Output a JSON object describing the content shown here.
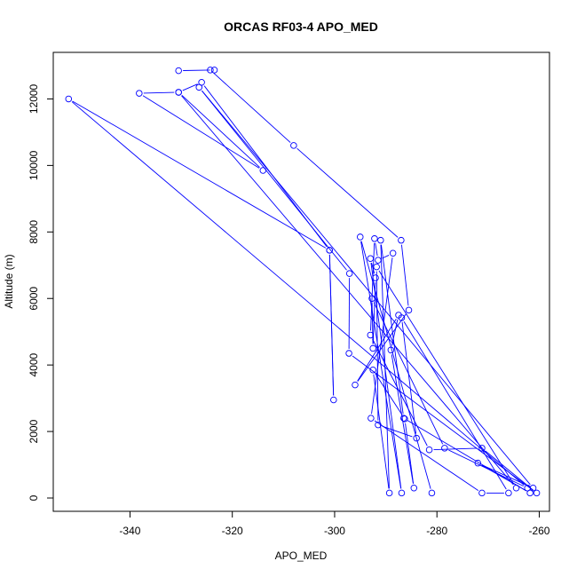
{
  "colors": {
    "series": "#0000ff",
    "axis": "#000000"
  },
  "chart_data": {
    "type": "line",
    "markers": "open-circle",
    "title": "ORCAS RF03-4 APO_MED",
    "xlabel": "APO_MED",
    "ylabel": "Altitude (m)",
    "xlim": [
      -355,
      -258
    ],
    "ylim": [
      -400,
      13400
    ],
    "xticks": [
      -340,
      -320,
      -300,
      -280,
      -260
    ],
    "yticks": [
      0,
      2000,
      4000,
      6000,
      8000,
      10000,
      12000
    ],
    "grid": false,
    "series": [
      {
        "points": [
          [
            -330.5,
            12850
          ],
          [
            -323.5,
            12870
          ],
          [
            -324.3,
            12870
          ],
          [
            -308,
            10600
          ],
          [
            -287,
            7750
          ],
          [
            -285.5,
            5650
          ],
          [
            -296,
            3400
          ],
          [
            -287.5,
            5500
          ],
          [
            -289,
            4450
          ],
          [
            -284.5,
            300
          ],
          [
            -286.3,
            2380
          ],
          [
            -292.5,
            3850
          ],
          [
            -289.3,
            150
          ],
          [
            -291,
            7750
          ],
          [
            -286.5,
            2400
          ],
          [
            -261.8,
            150
          ],
          [
            -272,
            1050
          ],
          [
            -261.2,
            300
          ],
          [
            -326.5,
            12350
          ],
          [
            -297.1,
            6750
          ],
          [
            -297.2,
            4350
          ],
          [
            -260.5,
            150
          ],
          [
            -271.2,
            1500
          ],
          [
            -281.5,
            1450
          ],
          [
            -293,
            4900
          ],
          [
            -292.2,
            7800
          ],
          [
            -291.5,
            7150
          ],
          [
            -288.6,
            7360
          ],
          [
            -292.9,
            2400
          ],
          [
            -271.2,
            150
          ],
          [
            -266,
            150
          ],
          [
            -286.9,
            5420
          ],
          [
            -284,
            1800
          ],
          [
            -291.5,
            2200
          ],
          [
            -291.8,
            6950
          ],
          [
            -264.5,
            300
          ],
          [
            -330.5,
            12200
          ],
          [
            -338.2,
            12170
          ],
          [
            -314,
            9850
          ],
          [
            -330.5,
            12200
          ],
          [
            -326,
            12500
          ],
          [
            -301,
            7450
          ],
          [
            -300.2,
            2950
          ],
          [
            -301,
            7450
          ],
          [
            -352,
            12000
          ],
          [
            -262.3,
            300
          ],
          [
            -278.5,
            1500
          ],
          [
            -292.7,
            6000
          ],
          [
            -292.5,
            4500
          ],
          [
            -292,
            6620
          ],
          [
            -293,
            7200
          ],
          [
            -286.9,
            150
          ],
          [
            -295,
            7850
          ],
          [
            -281,
            150
          ]
        ]
      }
    ]
  }
}
